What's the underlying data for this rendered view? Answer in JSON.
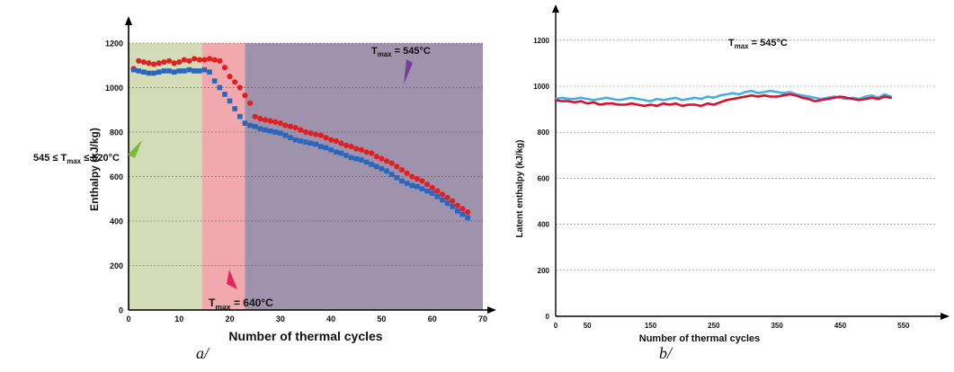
{
  "chart_data": [
    {
      "id": "a",
      "type": "scatter",
      "caption": "a/",
      "xlabel": "Number of thermal cycles",
      "ylabel": "Enthalpy (kJ/kg)",
      "xlim": [
        0,
        70
      ],
      "ylim": [
        0,
        1200
      ],
      "xticks": [
        0,
        10,
        20,
        30,
        40,
        50,
        60,
        70
      ],
      "yticks": [
        0,
        200,
        400,
        600,
        800,
        1000,
        1200
      ],
      "grid": "horizontal dashed",
      "regions": [
        {
          "x0": 0,
          "x1": 14.5,
          "color": "#d3dcb7"
        },
        {
          "x0": 14.5,
          "x1": 23,
          "color": "#f2a9ad"
        },
        {
          "x0": 23,
          "x1": 71,
          "color": "#9e92ad"
        }
      ],
      "annotations": [
        {
          "id": "green",
          "prefix": "545 ≤ T",
          "sub": "max",
          "suffix": " ≤ 620°C",
          "color": "#7dba3c"
        },
        {
          "id": "pink",
          "prefix": "T",
          "sub": "max",
          "suffix": " = 640°C",
          "color": "#e0245e"
        },
        {
          "id": "purple",
          "prefix": "T",
          "sub": "max",
          "suffix": " = 545°C",
          "color": "#7a3d96"
        }
      ],
      "series": [
        {
          "marker": "circle",
          "color": "#e02020",
          "x": [
            1,
            2,
            3,
            4,
            5,
            6,
            7,
            8,
            9,
            10,
            11,
            12,
            13,
            14,
            15,
            16,
            17,
            18,
            19,
            20,
            21,
            22,
            23,
            24,
            25,
            26,
            27,
            28,
            29,
            30,
            31,
            32,
            33,
            34,
            35,
            36,
            37,
            38,
            39,
            40,
            41,
            42,
            43,
            44,
            45,
            46,
            47,
            48,
            49,
            50,
            51,
            52,
            53,
            54,
            55,
            56,
            57,
            58,
            59,
            60,
            61,
            62,
            63,
            64,
            65,
            66,
            67
          ],
          "y": [
            1085,
            1120,
            1115,
            1110,
            1105,
            1110,
            1115,
            1120,
            1110,
            1115,
            1125,
            1120,
            1130,
            1125,
            1125,
            1130,
            1125,
            1120,
            1090,
            1050,
            1025,
            1000,
            965,
            930,
            870,
            860,
            855,
            850,
            845,
            840,
            830,
            825,
            820,
            810,
            800,
            795,
            790,
            785,
            775,
            765,
            760,
            750,
            740,
            735,
            725,
            720,
            710,
            705,
            690,
            680,
            670,
            660,
            645,
            630,
            615,
            600,
            590,
            580,
            565,
            550,
            535,
            520,
            505,
            490,
            470,
            455,
            440
          ]
        },
        {
          "marker": "square",
          "color": "#2a66bd",
          "x": [
            1,
            2,
            3,
            4,
            5,
            6,
            7,
            8,
            9,
            10,
            11,
            12,
            13,
            14,
            15,
            16,
            17,
            18,
            19,
            20,
            21,
            22,
            23,
            24,
            25,
            26,
            27,
            28,
            29,
            30,
            31,
            32,
            33,
            34,
            35,
            36,
            37,
            38,
            39,
            40,
            41,
            42,
            43,
            44,
            45,
            46,
            47,
            48,
            49,
            50,
            51,
            52,
            53,
            54,
            55,
            56,
            57,
            58,
            59,
            60,
            61,
            62,
            63,
            64,
            65,
            66,
            67
          ],
          "y": [
            1080,
            1075,
            1070,
            1065,
            1065,
            1070,
            1075,
            1075,
            1070,
            1075,
            1075,
            1080,
            1075,
            1075,
            1080,
            1070,
            1030,
            1000,
            970,
            940,
            905,
            870,
            840,
            830,
            825,
            815,
            810,
            805,
            800,
            795,
            785,
            775,
            765,
            760,
            755,
            750,
            745,
            735,
            730,
            720,
            710,
            705,
            695,
            685,
            680,
            675,
            665,
            655,
            645,
            635,
            625,
            610,
            595,
            580,
            570,
            560,
            555,
            545,
            535,
            525,
            510,
            495,
            480,
            465,
            445,
            430,
            415
          ]
        }
      ]
    },
    {
      "id": "b",
      "type": "line",
      "caption": "b/",
      "xlabel": "Number of thermal cycles",
      "ylabel": "Latent enthalpy (kJ/kg)",
      "xlim": [
        0,
        600
      ],
      "ylim": [
        0,
        1250
      ],
      "xticks": [
        0,
        50,
        150,
        250,
        350,
        450,
        550
      ],
      "yticks": [
        0,
        200,
        400,
        600,
        800,
        1000,
        1200
      ],
      "grid": "horizontal dashed",
      "annotation": {
        "prefix": "T",
        "sub": "max",
        "suffix": " = 545°C"
      },
      "series": [
        {
          "color": "#46aee6",
          "x": [
            0,
            10,
            20,
            30,
            40,
            50,
            60,
            70,
            80,
            90,
            100,
            110,
            120,
            130,
            140,
            150,
            160,
            170,
            180,
            190,
            200,
            210,
            220,
            230,
            240,
            250,
            260,
            270,
            280,
            290,
            300,
            310,
            320,
            330,
            340,
            350,
            360,
            370,
            380,
            390,
            400,
            410,
            420,
            430,
            440,
            450,
            460,
            470,
            480,
            490,
            500,
            510,
            520,
            530
          ],
          "y": [
            945,
            950,
            945,
            945,
            950,
            945,
            940,
            945,
            950,
            945,
            940,
            945,
            950,
            945,
            940,
            935,
            945,
            940,
            945,
            950,
            940,
            945,
            950,
            945,
            955,
            950,
            960,
            965,
            970,
            965,
            975,
            980,
            970,
            975,
            980,
            975,
            970,
            975,
            965,
            960,
            955,
            950,
            945,
            950,
            955,
            950,
            945,
            950,
            945,
            955,
            960,
            950,
            965,
            955
          ]
        },
        {
          "color": "#d8122e",
          "x": [
            0,
            10,
            20,
            30,
            40,
            50,
            60,
            70,
            80,
            90,
            100,
            110,
            120,
            130,
            140,
            150,
            160,
            170,
            180,
            190,
            200,
            210,
            220,
            230,
            240,
            250,
            260,
            270,
            280,
            290,
            300,
            310,
            320,
            330,
            340,
            350,
            360,
            370,
            380,
            390,
            400,
            410,
            420,
            430,
            440,
            450,
            460,
            470,
            480,
            490,
            500,
            510,
            520,
            530
          ],
          "y": [
            940,
            935,
            935,
            930,
            935,
            925,
            930,
            920,
            925,
            925,
            920,
            920,
            925,
            920,
            915,
            920,
            915,
            925,
            920,
            925,
            915,
            920,
            920,
            915,
            925,
            920,
            930,
            940,
            945,
            950,
            955,
            960,
            955,
            960,
            955,
            955,
            960,
            965,
            960,
            950,
            945,
            935,
            940,
            945,
            950,
            955,
            950,
            945,
            940,
            945,
            950,
            945,
            955,
            950
          ]
        }
      ]
    }
  ]
}
